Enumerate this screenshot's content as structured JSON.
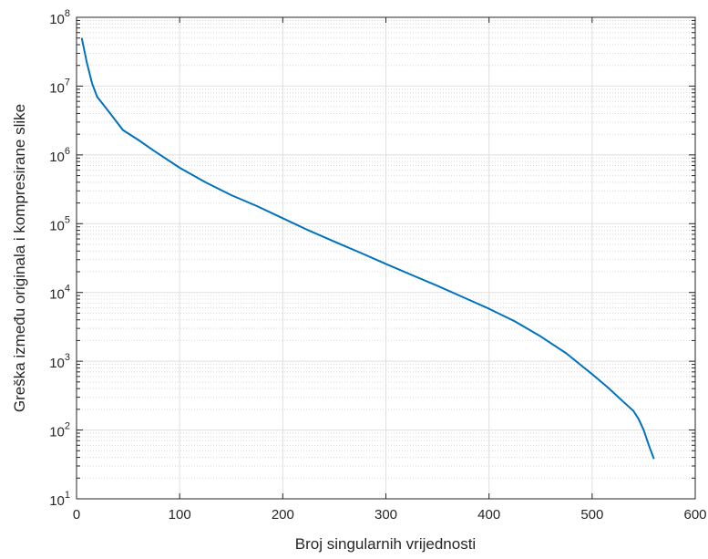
{
  "chart_data": {
    "type": "line",
    "title": "",
    "xlabel": "Broj singularnih vrijednosti",
    "ylabel": "Greška između originala i kompresirane slike",
    "xlim": [
      0,
      600
    ],
    "ylim": [
      10,
      100000000
    ],
    "yscale": "log",
    "grid": true,
    "minor_grid": true,
    "x_ticks": [
      0,
      100,
      200,
      300,
      400,
      500,
      600
    ],
    "x_tick_labels": [
      "0",
      "100",
      "200",
      "300",
      "400",
      "500",
      "600"
    ],
    "y_ticks": [
      10,
      100,
      1000,
      10000,
      100000,
      1000000,
      10000000,
      100000000
    ],
    "y_tick_labels": [
      {
        "base": "10",
        "exp": "1"
      },
      {
        "base": "10",
        "exp": "2"
      },
      {
        "base": "10",
        "exp": "3"
      },
      {
        "base": "10",
        "exp": "4"
      },
      {
        "base": "10",
        "exp": "5"
      },
      {
        "base": "10",
        "exp": "6"
      },
      {
        "base": "10",
        "exp": "7"
      },
      {
        "base": "10",
        "exp": "8"
      }
    ],
    "line_color": "#0072BD",
    "series": [
      {
        "x": [
          5,
          10,
          15,
          20,
          30,
          45,
          60,
          75,
          100,
          125,
          150,
          175,
          200,
          225,
          250,
          275,
          300,
          325,
          350,
          375,
          400,
          425,
          450,
          475,
          500,
          515,
          530,
          540,
          545,
          550,
          555,
          560
        ],
        "values": [
          50000000,
          22000000,
          11000000,
          7000000,
          4500000,
          2300000,
          1650000,
          1150000,
          650000,
          400000,
          260000,
          180000,
          120000,
          80000,
          55000,
          38000,
          26000,
          18000,
          12500,
          8500,
          5800,
          3800,
          2300,
          1300,
          650,
          420,
          260,
          190,
          145,
          100,
          60,
          38
        ]
      }
    ]
  }
}
